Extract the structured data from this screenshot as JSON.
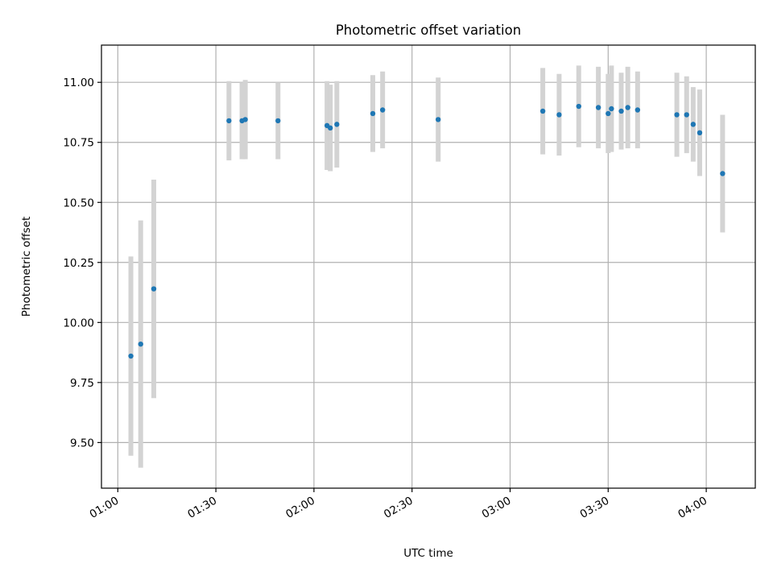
{
  "chart_data": {
    "type": "scatter",
    "title": "Photometric offset variation",
    "xlabel": "UTC time",
    "ylabel": "Photometric offset",
    "x_ticks": [
      "01:00",
      "01:30",
      "02:00",
      "02:30",
      "03:00",
      "03:30",
      "04:00"
    ],
    "y_ticks": [
      "9.50",
      "9.75",
      "10.00",
      "10.25",
      "10.50",
      "10.75",
      "11.00"
    ],
    "x_range": [
      "00:55",
      "04:15"
    ],
    "ylim": [
      9.31,
      11.155
    ],
    "grid": true,
    "colors": {
      "point": "#1f77b4",
      "errorbar": "#d3d3d3"
    },
    "series": [
      {
        "x": [
          "01:04",
          "01:07",
          "01:11",
          "01:34",
          "01:38",
          "01:39",
          "01:49",
          "02:04",
          "02:05",
          "02:07",
          "02:18",
          "02:21",
          "02:38",
          "03:10",
          "03:15",
          "03:21",
          "03:27",
          "03:30",
          "03:31",
          "03:34",
          "03:36",
          "03:39",
          "03:51",
          "03:54",
          "03:56",
          "03:58",
          "04:05"
        ],
        "y": [
          9.86,
          9.91,
          10.14,
          10.84,
          10.84,
          10.845,
          10.84,
          10.82,
          10.81,
          10.825,
          10.87,
          10.885,
          10.845,
          10.88,
          10.865,
          10.9,
          10.895,
          10.87,
          10.89,
          10.88,
          10.895,
          10.885,
          10.865,
          10.865,
          10.825,
          10.79,
          10.62
        ],
        "err": [
          0.415,
          0.515,
          0.455,
          0.165,
          0.16,
          0.165,
          0.16,
          0.185,
          0.18,
          0.18,
          0.16,
          0.16,
          0.175,
          0.18,
          0.17,
          0.17,
          0.17,
          0.165,
          0.18,
          0.16,
          0.17,
          0.16,
          0.175,
          0.16,
          0.155,
          0.18,
          0.245
        ]
      }
    ]
  }
}
